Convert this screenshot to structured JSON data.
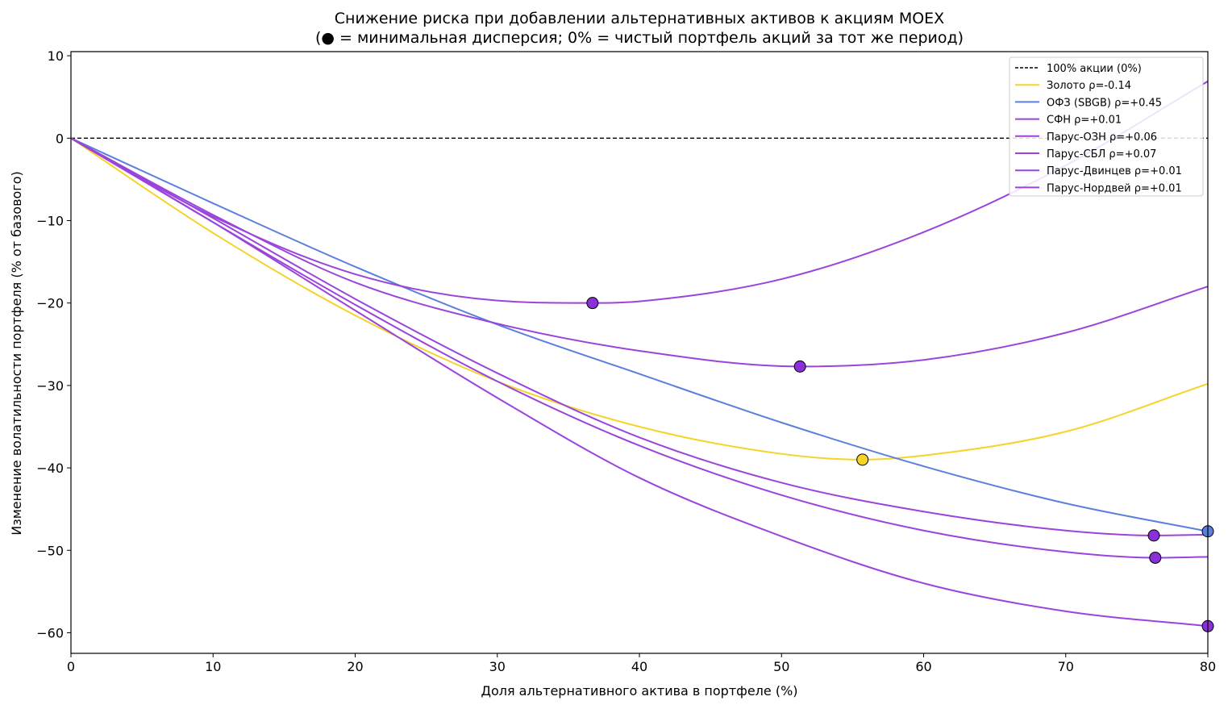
{
  "chart_data": {
    "type": "line",
    "title": "Снижение риска при добавлении альтернативных активов к акциям MOEX",
    "subtitle": "(● = минимальная дисперсия; 0% = чистый портфель акций за тот же период)",
    "xlabel": "Доля альтернативного актива в портфеле (%)",
    "ylabel": "Изменение волатильности портфеля (% от базового)",
    "xlim": [
      0,
      80
    ],
    "ylim": [
      -62.5,
      10.5
    ],
    "xticks": [
      0,
      10,
      20,
      30,
      40,
      50,
      60,
      70,
      80
    ],
    "xtick_labels": [
      "0",
      "10",
      "20",
      "30",
      "40",
      "50",
      "60",
      "70",
      "80"
    ],
    "yticks": [
      10,
      0,
      -10,
      -20,
      -30,
      -40,
      -50,
      -60
    ],
    "ytick_labels": [
      "10",
      "0",
      "−10",
      "−20",
      "−30",
      "−40",
      "−50",
      "−60"
    ],
    "grid": false,
    "legend_position": "top-right",
    "baseline": {
      "name": "100% акции (0%)",
      "y": 0,
      "color": "#000000"
    },
    "series": [
      {
        "name": "Золото  ρ=-0.14",
        "color": "#f5d327",
        "x": [
          0,
          10,
          20,
          30,
          40,
          50,
          55.7,
          60,
          70,
          80
        ],
        "y": [
          0,
          -11.5,
          -21.5,
          -29.5,
          -35,
          -38.3,
          -39.0,
          -38.5,
          -35.6,
          -29.8
        ],
        "min_point": [
          55.7,
          -39.0
        ],
        "marker_color": "#f5d327"
      },
      {
        "name": "ОФЗ (SBGB)  ρ=+0.45",
        "color": "#5b7fdc",
        "x": [
          0,
          10,
          20,
          30,
          40,
          50,
          60,
          70,
          80
        ],
        "y": [
          0,
          -7.9,
          -15.6,
          -22.6,
          -28.6,
          -34.5,
          -39.8,
          -44.3,
          -47.7
        ],
        "min_point": [
          80,
          -47.7
        ],
        "marker_color": "#5b7fdc"
      },
      {
        "name": "СФН  ρ=+0.01",
        "color": "#9a44dc",
        "x": [
          0,
          10,
          20,
          30,
          36.7,
          40,
          50,
          60,
          70,
          80
        ],
        "y": [
          0,
          -9.5,
          -16.5,
          -19.7,
          -20.0,
          -19.8,
          -17.1,
          -11.4,
          -3.3,
          6.9
        ],
        "min_point": [
          36.7,
          -20.0
        ],
        "marker_color": "#8b2fd9"
      },
      {
        "name": "Парус-ОЗН  ρ=+0.06",
        "color": "#9a44dc",
        "x": [
          0,
          10,
          20,
          30,
          40,
          51.3,
          60,
          70,
          80
        ],
        "y": [
          0,
          -9.3,
          -17.5,
          -22.5,
          -25.8,
          -27.7,
          -26.9,
          -23.6,
          -18.0
        ],
        "min_point": [
          51.3,
          -27.7
        ],
        "marker_color": "#8b2fd9"
      },
      {
        "name": "Парус-СБЛ  ρ=+0.07",
        "color": "#9a44dc",
        "x": [
          0,
          10,
          20,
          30,
          40,
          50,
          60,
          70,
          76.2,
          80
        ],
        "y": [
          0,
          -9.7,
          -19.5,
          -28.5,
          -36.3,
          -41.8,
          -45.3,
          -47.6,
          -48.2,
          -48.1
        ],
        "min_point": [
          76.2,
          -48.2
        ],
        "marker_color": "#8b2fd9"
      },
      {
        "name": "Парус-Двинцев  ρ=+0.01",
        "color": "#9a44dc",
        "x": [
          0,
          10,
          20,
          30,
          40,
          50,
          60,
          70,
          76.3,
          80
        ],
        "y": [
          0,
          -10.2,
          -20.2,
          -29.5,
          -37.3,
          -43.3,
          -47.6,
          -50.2,
          -50.9,
          -50.8
        ],
        "min_point": [
          76.3,
          -50.9
        ],
        "marker_color": "#8b2fd9"
      },
      {
        "name": "Парус-Нордвей  ρ=+0.01",
        "color": "#9a44dc",
        "x": [
          0,
          10,
          20,
          30,
          40,
          50,
          60,
          70,
          80
        ],
        "y": [
          0,
          -10.2,
          -20.9,
          -31.5,
          -41.2,
          -48.3,
          -54.0,
          -57.4,
          -59.2
        ],
        "min_point": [
          80,
          -59.2
        ],
        "marker_color": "#8b2fd9"
      }
    ]
  }
}
